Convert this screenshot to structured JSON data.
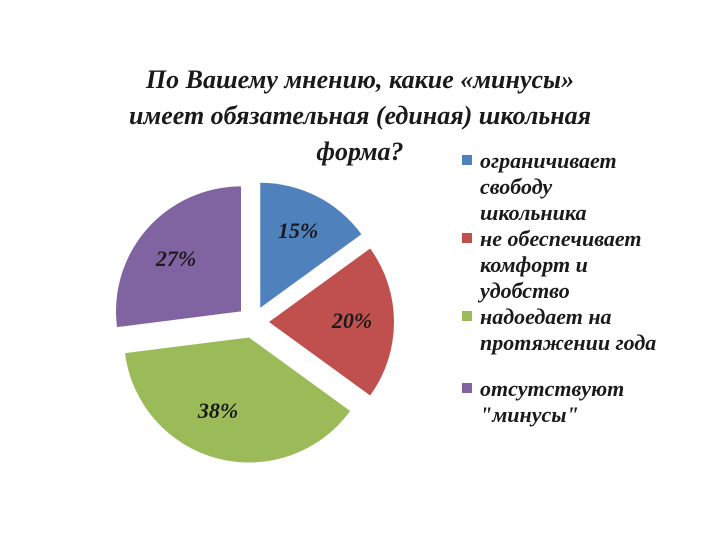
{
  "chart_data": {
    "type": "pie",
    "title_lines": [
      "По Вашему мнению, какие «минусы»",
      "имеет обязательная (единая) школьная",
      "форма?"
    ],
    "slices": [
      {
        "label": "ограничивает свободу школьника",
        "label_lines": [
          "ограничивает",
          "свободу",
          "школьника"
        ],
        "value": 15,
        "display": "15%",
        "color": "#4f81bd"
      },
      {
        "label": "не обеспечивает комфорт и удобство",
        "label_lines": [
          "не обеспечивает",
          "комфорт и",
          "удобство"
        ],
        "value": 20,
        "display": "20%",
        "color": "#c0504d"
      },
      {
        "label": "надоедает на протяжении года",
        "label_lines": [
          "надоедает на",
          "протяжении года"
        ],
        "value": 38,
        "display": "38%",
        "color": "#9bbb59"
      },
      {
        "label": "отсутствуют \"минусы\"",
        "label_lines": [
          "отсутствуют",
          "\"минусы\""
        ],
        "value": 27,
        "display": "27%",
        "color": "#8064a2"
      }
    ],
    "legend_position": "right",
    "exploded": true
  }
}
